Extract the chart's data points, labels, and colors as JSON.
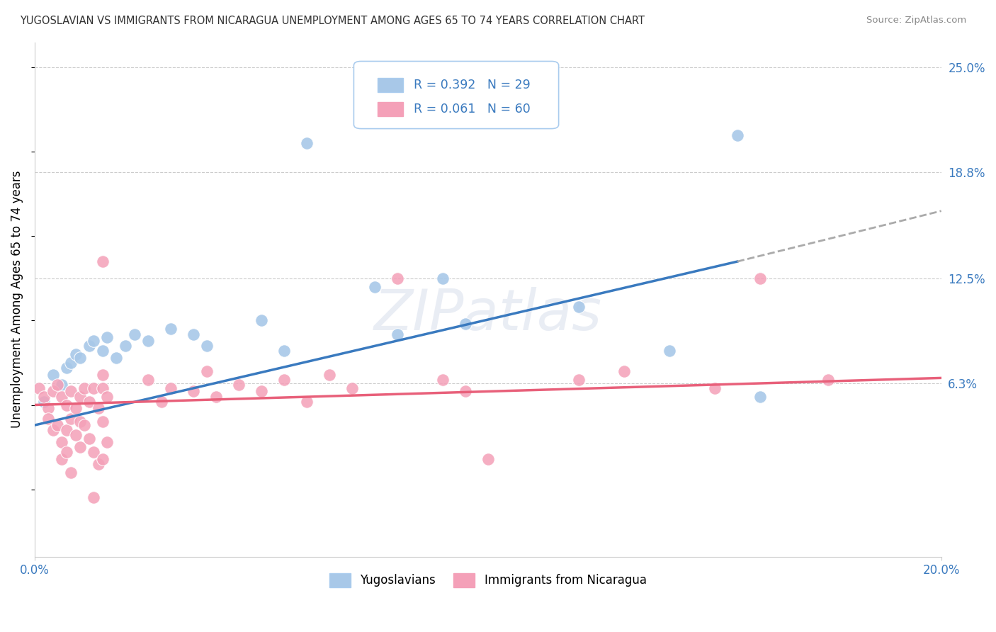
{
  "title": "YUGOSLAVIAN VS IMMIGRANTS FROM NICARAGUA UNEMPLOYMENT AMONG AGES 65 TO 74 YEARS CORRELATION CHART",
  "source": "Source: ZipAtlas.com",
  "ylabel": "Unemployment Among Ages 65 to 74 years",
  "x_min": 0.0,
  "x_max": 0.2,
  "y_min": -0.04,
  "y_max": 0.265,
  "y_ticks": [
    0.063,
    0.125,
    0.188,
    0.25
  ],
  "y_tick_labels": [
    "6.3%",
    "12.5%",
    "18.8%",
    "25.0%"
  ],
  "x_ticks": [
    0.0,
    0.2
  ],
  "x_tick_labels": [
    "0.0%",
    "20.0%"
  ],
  "legend_r1": "R = 0.392",
  "legend_n1": "N = 29",
  "legend_r2": "R = 0.061",
  "legend_n2": "N = 60",
  "color_blue": "#a8c8e8",
  "color_pink": "#f4a0b8",
  "color_blue_line": "#3a7abf",
  "color_pink_line": "#e8607a",
  "color_blue_text": "#3a7abf",
  "label1": "Yugoslavians",
  "label2": "Immigrants from Nicaragua",
  "background_color": "#ffffff",
  "grid_color": "#cccccc",
  "blue_trend_x0": 0.0,
  "blue_trend_y0": 0.038,
  "blue_trend_x1": 0.155,
  "blue_trend_y1": 0.135,
  "blue_trend_dash_x1": 0.2,
  "blue_trend_dash_y1": 0.165,
  "pink_trend_x0": 0.0,
  "pink_trend_y0": 0.05,
  "pink_trend_x1": 0.2,
  "pink_trend_y1": 0.066
}
